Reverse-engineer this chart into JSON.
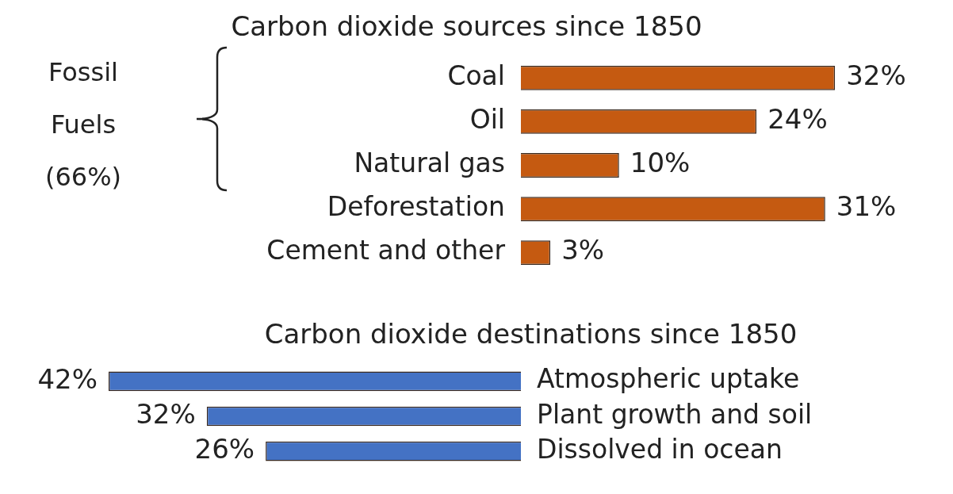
{
  "chart_data": [
    {
      "type": "bar",
      "orientation": "horizontal",
      "title": "Carbon dioxide sources since 1850",
      "categories": [
        "Coal",
        "Oil",
        "Natural gas",
        "Deforestation",
        "Cement and other"
      ],
      "values": [
        32,
        24,
        10,
        31,
        3
      ],
      "value_labels": [
        "32%",
        "24%",
        "10%",
        "31%",
        "3%"
      ],
      "color": "#c55a11",
      "tick_labels": "y",
      "grid": false,
      "legend": false,
      "annotations": [
        "Fossil Fuels (66%)"
      ]
    },
    {
      "type": "bar",
      "orientation": "horizontal",
      "title": "Carbon dioxide destinations since 1850",
      "categories": [
        "Atmospheric uptake",
        "Plant growth and soil",
        "Dissolved in ocean"
      ],
      "values": [
        42,
        32,
        26
      ],
      "value_labels": [
        "42%",
        "32%",
        "26%"
      ],
      "color": "#4472c4",
      "tick_labels": "y",
      "grid": false,
      "legend": false
    }
  ]
}
